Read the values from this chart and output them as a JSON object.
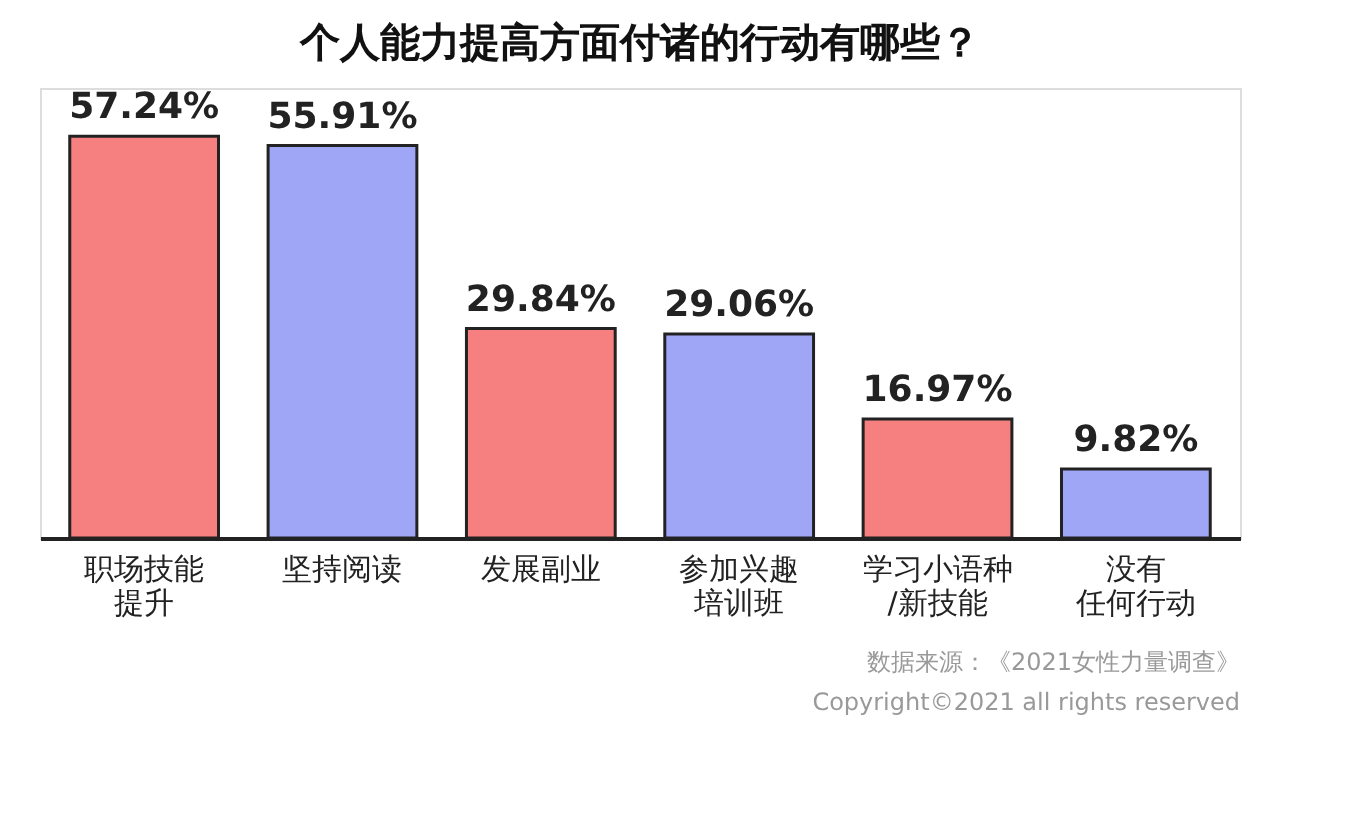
{
  "chart_data": {
    "type": "bar",
    "title": "个人能力提高方面付诸的行动有哪些？",
    "categories": [
      "职场技能提升",
      "坚持阅读",
      "发展副业",
      "参加兴趣培训班",
      "学习小语种/新技能",
      "没有任何行动"
    ],
    "values": [
      57.24,
      55.91,
      29.84,
      29.06,
      16.97,
      9.82
    ],
    "value_labels": [
      "57.24%",
      "55.91%",
      "29.84%",
      "29.06%",
      "16.97%",
      "9.82%"
    ],
    "colors": [
      "#f5807f",
      "#a0a6f6",
      "#f5807f",
      "#a0a6f6",
      "#f5807f",
      "#a0a6f6"
    ],
    "annotations": [
      "数据来源：《2021女性力量调查》",
      "Copyright©2021 all rights reserved"
    ]
  }
}
